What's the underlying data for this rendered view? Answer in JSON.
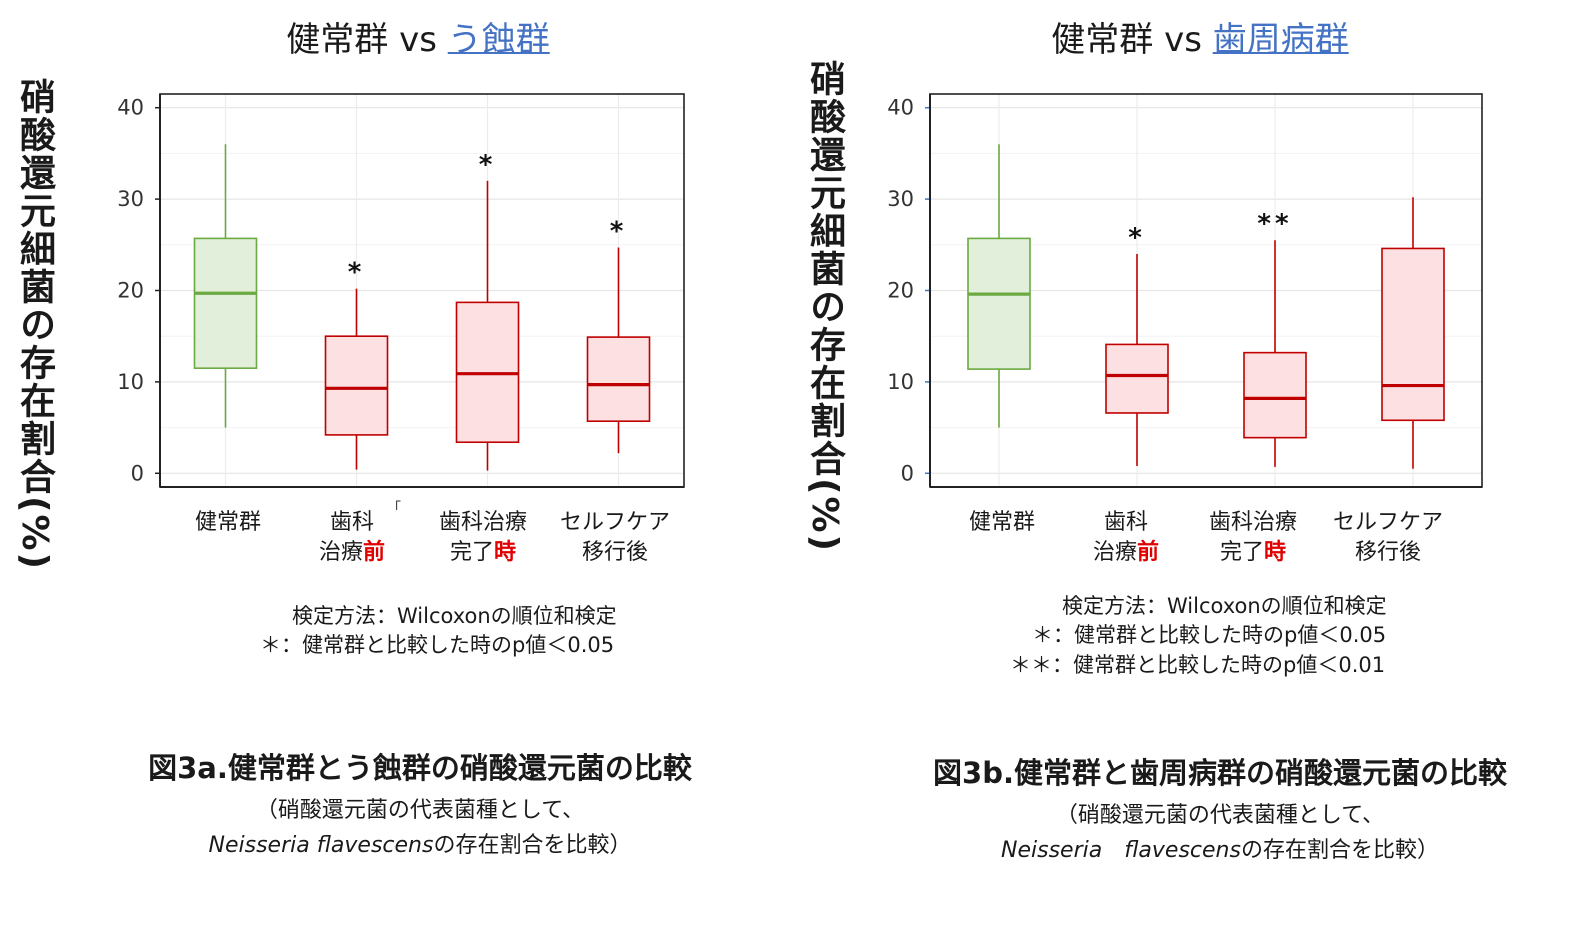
{
  "panels": [
    {
      "title_prefix": "健常群 vs ",
      "title_link": "う蝕群",
      "ylabel": "硝酸還元細菌の存在割合(%)",
      "x_labels": [
        {
          "line1": "健常群",
          "line2_a": "",
          "line2_b": ""
        },
        {
          "line1": "歯科",
          "line2_a": "治療",
          "line2_b": "前"
        },
        {
          "line1": "歯科治療",
          "line2_a": "完了",
          "line2_b": "時"
        },
        {
          "line1": "セルフケア",
          "line2_a": "移行後",
          "line2_b": ""
        }
      ],
      "stray_mark": "｢",
      "notes": [
        "検定方法：Wilcoxonの順位和検定",
        "＊：健常群と比較した時のp値＜0.05"
      ],
      "caption": "図3a.健常群とう蝕群の硝酸還元菌の比較",
      "sub1": "（硝酸還元菌の代表菌種として、",
      "sub2_italic": "Neisseria flavescens",
      "sub2_rest": "の存在割合を比較）"
    },
    {
      "title_prefix": "健常群 vs ",
      "title_link": "歯周病群",
      "ylabel": "硝酸還元細菌の存在割合(%)",
      "x_labels": [
        {
          "line1": "健常群",
          "line2_a": "",
          "line2_b": ""
        },
        {
          "line1": "歯科",
          "line2_a": "治療",
          "line2_b": "前"
        },
        {
          "line1": "歯科治療",
          "line2_a": "完了",
          "line2_b": "時"
        },
        {
          "line1": "セルフケア",
          "line2_a": "移行後",
          "line2_b": ""
        }
      ],
      "notes": [
        "検定方法：Wilcoxonの順位和検定",
        "＊：健常群と比較した時のp値＜0.05",
        "＊＊：健常群と比較した時のp値＜0.01"
      ],
      "caption": "図3b.健常群と歯周病群の硝酸還元菌の比較",
      "sub1": "（硝酸還元菌の代表菌種として、",
      "sub2_italic": "Neisseria　flavescens",
      "sub2_rest": "の存在割合を比較）"
    }
  ],
  "colors": {
    "healthy_stroke": "#6aaa40",
    "healthy_fill": "#e2efda",
    "patient_stroke": "#c00000",
    "patient_fill": "#fde0e2",
    "link": "#4472c4",
    "highlight": "#e00000"
  },
  "chart_data": [
    {
      "type": "box",
      "title": "健常群 vs う蝕群",
      "ylabel": "硝酸還元細菌の存在割合(%)",
      "categories": [
        "健常群",
        "歯科治療前",
        "歯科治療完了時",
        "セルフケア移行後"
      ],
      "yticks": [
        0,
        10,
        20,
        30,
        40
      ],
      "ylim": [
        -1.5,
        41.5
      ],
      "grid": true,
      "boxes": [
        {
          "min": 5.0,
          "q1": 11.5,
          "median": 19.7,
          "q3": 25.7,
          "max": 36.0,
          "group": "healthy",
          "sig": ""
        },
        {
          "min": 0.4,
          "q1": 4.2,
          "median": 9.3,
          "q3": 15.0,
          "max": 20.2,
          "group": "patient",
          "sig": "*"
        },
        {
          "min": 0.3,
          "q1": 3.4,
          "median": 10.9,
          "q3": 18.7,
          "max": 32.0,
          "group": "patient",
          "sig": "*"
        },
        {
          "min": 2.2,
          "q1": 5.7,
          "median": 9.7,
          "q3": 14.9,
          "max": 24.7,
          "group": "patient",
          "sig": "*"
        }
      ]
    },
    {
      "type": "box",
      "title": "健常群 vs 歯周病群",
      "ylabel": "硝酸還元細菌の存在割合(%)",
      "categories": [
        "健常群",
        "歯科治療前",
        "歯科治療完了時",
        "セルフケア移行後"
      ],
      "yticks": [
        0,
        10,
        20,
        30,
        40
      ],
      "ylim": [
        -1.5,
        41.5
      ],
      "grid": true,
      "boxes": [
        {
          "min": 5.0,
          "q1": 11.4,
          "median": 19.6,
          "q3": 25.7,
          "max": 36.0,
          "group": "healthy",
          "sig": ""
        },
        {
          "min": 0.8,
          "q1": 6.6,
          "median": 10.7,
          "q3": 14.1,
          "max": 24.0,
          "group": "patient",
          "sig": "*"
        },
        {
          "min": 0.7,
          "q1": 3.9,
          "median": 8.2,
          "q3": 13.2,
          "max": 25.5,
          "group": "patient",
          "sig": "**"
        },
        {
          "min": 0.5,
          "q1": 5.8,
          "median": 9.6,
          "q3": 24.6,
          "max": 30.2,
          "group": "patient",
          "sig": ""
        }
      ]
    }
  ]
}
